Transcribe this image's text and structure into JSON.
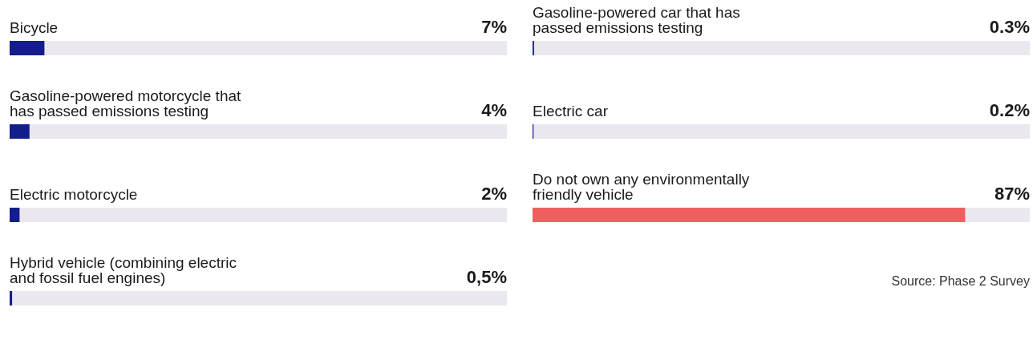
{
  "chart_data": [
    {
      "type": "bar",
      "orientation": "horizontal",
      "categories": [
        "Bicycle",
        "Gasoline-powered motorcycle that has passed emissions testing",
        "Electric motorcycle",
        "Hybrid vehicle (combining electric and fossil fuel engines)"
      ],
      "values": [
        7,
        4,
        2,
        0.5
      ],
      "value_labels": [
        "7%",
        "4%",
        "2%",
        "0,5%"
      ],
      "colors": [
        "#131e8c",
        "#131e8c",
        "#131e8c",
        "#131e8c"
      ],
      "xlim": [
        0,
        100
      ]
    },
    {
      "type": "bar",
      "orientation": "horizontal",
      "categories": [
        "Gasoline-powered car that has passed emissions testing",
        "Electric car",
        "Do not own any environmentally friendly vehicle"
      ],
      "values": [
        0.3,
        0.2,
        87
      ],
      "value_labels": [
        "0.3%",
        "0.2%",
        "87%"
      ],
      "colors": [
        "#131e8c",
        "#131e8c",
        "#ef5f5f"
      ],
      "xlim": [
        0,
        100
      ],
      "annotations": [
        "Source: Phase 2 Survey"
      ]
    }
  ]
}
